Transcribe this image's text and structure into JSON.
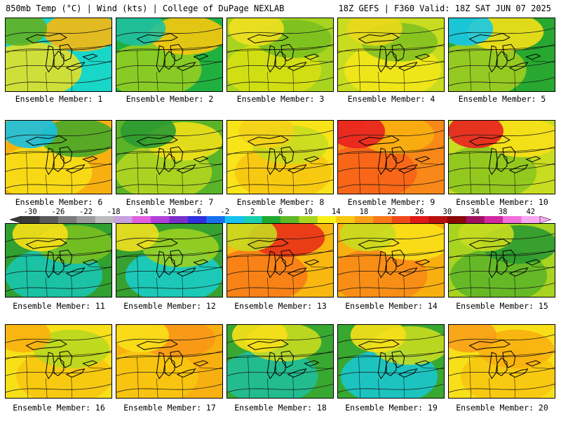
{
  "header": {
    "title_left": "850mb Temp (°C) | Wind (kts) | College of DuPage NEXLAB",
    "title_right": "18Z GEFS | F360 Valid: 18Z SAT JUN 07 2025"
  },
  "members": [
    {
      "label": "Ensemble Member: 1",
      "palette": [
        "#18d6c8",
        "#f0e020",
        "#f8b810",
        "#62b020"
      ]
    },
    {
      "label": "Ensemble Member: 2",
      "palette": [
        "#20b040",
        "#9ad020",
        "#f8c810",
        "#20c0a0"
      ]
    },
    {
      "label": "Ensemble Member: 3",
      "palette": [
        "#a8d420",
        "#d8e010",
        "#7ac020",
        "#f0e020"
      ]
    },
    {
      "label": "Ensemble Member: 4",
      "palette": [
        "#c8dc20",
        "#f4e818",
        "#82c020",
        "#e8d818"
      ]
    },
    {
      "label": "Ensemble Member: 5",
      "palette": [
        "#28a830",
        "#a8d020",
        "#f4e018",
        "#18c8e8"
      ]
    },
    {
      "label": "Ensemble Member: 6",
      "palette": [
        "#f8b010",
        "#f8e018",
        "#46a828",
        "#18c0e0"
      ]
    },
    {
      "label": "Ensemble Member: 7",
      "palette": [
        "#5ab428",
        "#b8d820",
        "#f0e018",
        "#2a9a30"
      ]
    },
    {
      "label": "Ensemble Member: 8",
      "palette": [
        "#f8e418",
        "#f8c410",
        "#c8dc20",
        "#f4d018"
      ]
    },
    {
      "label": "Ensemble Member: 9",
      "palette": [
        "#f88818",
        "#f86018",
        "#f8b010",
        "#e82020"
      ]
    },
    {
      "label": "Ensemble Member: 10",
      "palette": [
        "#c8dc20",
        "#8ac420",
        "#f8e018",
        "#e82020"
      ]
    },
    {
      "label": "Ensemble Member: 11",
      "palette": [
        "#30a030",
        "#18c8b8",
        "#7ac020",
        "#f8e018"
      ]
    },
    {
      "label": "Ensemble Member: 12",
      "palette": [
        "#38a030",
        "#18d0d0",
        "#9ad020",
        "#f0e020"
      ]
    },
    {
      "label": "Ensemble Member: 13",
      "palette": [
        "#f8b810",
        "#f87818",
        "#e83018",
        "#c8d820"
      ]
    },
    {
      "label": "Ensemble Member: 14",
      "palette": [
        "#f8b010",
        "#f88818",
        "#f8e018",
        "#c8dc20"
      ]
    },
    {
      "label": "Ensemble Member: 15",
      "palette": [
        "#a8d420",
        "#5ab428",
        "#2a9a30",
        "#c8dc20"
      ]
    },
    {
      "label": "Ensemble Member: 16",
      "palette": [
        "#f8e018",
        "#f8c410",
        "#b8d820",
        "#f8b010"
      ]
    },
    {
      "label": "Ensemble Member: 17",
      "palette": [
        "#f8b010",
        "#f8c810",
        "#f89818",
        "#f8e018"
      ]
    },
    {
      "label": "Ensemble Member: 18",
      "palette": [
        "#38a830",
        "#20c0a0",
        "#c8dc20",
        "#f8e018"
      ]
    },
    {
      "label": "Ensemble Member: 19",
      "palette": [
        "#38a830",
        "#18c8d8",
        "#c8dc20",
        "#f8e018"
      ]
    },
    {
      "label": "Ensemble Member: 20",
      "palette": [
        "#f8e018",
        "#f8c410",
        "#f8b010",
        "#f8a018"
      ]
    }
  ],
  "colorbar": {
    "labels": [
      "-30",
      "-26",
      "-22",
      "-18",
      "-14",
      "-10",
      "-6",
      "-2",
      "2",
      "6",
      "10",
      "14",
      "18",
      "22",
      "26",
      "30",
      "34",
      "38",
      "42"
    ],
    "colors": [
      "#3a3a3a",
      "#5a5a5a",
      "#7a7a7a",
      "#9a9a9a",
      "#bcbcbc",
      "#c8a0e0",
      "#e060e0",
      "#b040d8",
      "#7a30c8",
      "#3030e0",
      "#1870f0",
      "#18c0f0",
      "#18d0b0",
      "#20a830",
      "#60b828",
      "#a8d420",
      "#f8f018",
      "#f8c810",
      "#f8a018",
      "#f87818",
      "#f04818",
      "#e01818",
      "#b81010",
      "#8a0808",
      "#a01060",
      "#d028a0",
      "#f070d8",
      "#f8a8f0"
    ]
  }
}
